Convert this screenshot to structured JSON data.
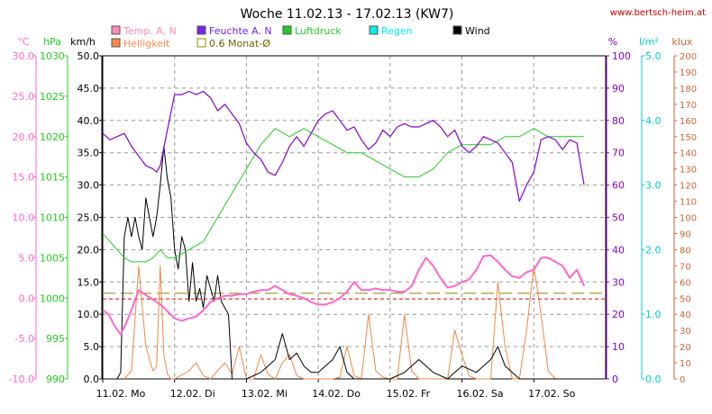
{
  "title": "Woche 11.02.13 - 17.02.13 (KW7)",
  "site": "www.bertsch-heim.at",
  "colors": {
    "temp": "#ff66cc",
    "humidity": "#8800cc",
    "pressure": "#22cc22",
    "rain": "#00cccc",
    "wind": "#000000",
    "brightness": "#ee8844",
    "avg": "#888800",
    "redline": "#dd0000",
    "grid": "#999999"
  },
  "legend": [
    {
      "label": "Temp. A. N",
      "color": "#ff88bb",
      "key": "temp"
    },
    {
      "label": "Feuchte A. N",
      "color": "#7722ee",
      "key": "humidity"
    },
    {
      "label": "Luftdruck",
      "color": "#22cc22",
      "key": "pressure"
    },
    {
      "label": "Regen",
      "color": "#00eeee",
      "key": "rain"
    },
    {
      "label": "Wind",
      "color": "#000000",
      "key": "wind"
    },
    {
      "label": "Helligkeit",
      "color": "#ff8844",
      "key": "brightness"
    },
    {
      "label": "0.6 Monat-Ø",
      "color": "#ffffff",
      "key": "avg"
    }
  ],
  "chart_data": {
    "type": "line",
    "x_labels": [
      "11.02. Mo",
      "12.02. Di",
      "13.02. Mi",
      "14.02. Do",
      "15.02. Fr",
      "16.02. Sa",
      "17.02. So"
    ],
    "axes": {
      "temp": {
        "unit": "°C",
        "min": -10,
        "max": 30,
        "ticks": [
          "30.0",
          "25.0",
          "20.0",
          "15.0",
          "10.0",
          "5.0",
          "0.0",
          "-5.0",
          "-10.0"
        ]
      },
      "pressure": {
        "unit": "hPa",
        "min": 990,
        "max": 1030,
        "ticks": [
          "1030",
          "1025",
          "1020",
          "1015",
          "1010",
          "1005",
          "1000",
          "995",
          "990"
        ]
      },
      "wind": {
        "unit": "km/h",
        "min": 0,
        "max": 50,
        "ticks": [
          "50.0",
          "45.0",
          "40.0",
          "35.0",
          "30.0",
          "25.0",
          "20.0",
          "15.0",
          "10.0",
          "5.0",
          "0.0"
        ]
      },
      "humidity": {
        "unit": "%",
        "min": 0,
        "max": 100,
        "ticks": [
          "100",
          "90",
          "80",
          "70",
          "60",
          "50",
          "40",
          "30",
          "20",
          "10",
          "0"
        ]
      },
      "rain": {
        "unit": "l/m²",
        "min": 0,
        "max": 5,
        "ticks": [
          "5.0",
          "4.0",
          "3.0",
          "2.0",
          "1.0",
          "0.0"
        ]
      },
      "brightness": {
        "unit": "klux",
        "min": 0,
        "max": 200,
        "ticks": [
          "200",
          "190",
          "180",
          "170",
          "160",
          "150",
          "140",
          "130",
          "120",
          "110",
          "100",
          "90",
          "80",
          "70",
          "60",
          "50",
          "40",
          "30",
          "20",
          "10",
          "0"
        ]
      }
    },
    "series": [
      {
        "name": "Temp. A. N",
        "key": "temp",
        "axis": "temp",
        "x": [
          0,
          0.08,
          0.17,
          0.25,
          0.33,
          0.42,
          0.5,
          0.58,
          0.67,
          0.75,
          0.83,
          0.92,
          1.0,
          1.1,
          1.2,
          1.3,
          1.4,
          1.5,
          1.6,
          1.7,
          1.8,
          1.9,
          2.0,
          2.1,
          2.2,
          2.3,
          2.4,
          2.5,
          2.6,
          2.7,
          2.8,
          2.9,
          3.0,
          3.1,
          3.2,
          3.3,
          3.4,
          3.5,
          3.6,
          3.7,
          3.8,
          3.9,
          4.0,
          4.1,
          4.2,
          4.3,
          4.4,
          4.5,
          4.6,
          4.7,
          4.8,
          4.9,
          5.0,
          5.1,
          5.2,
          5.3,
          5.4,
          5.5,
          5.6,
          5.7,
          5.8,
          5.9,
          6.0,
          6.1,
          6.2,
          6.3,
          6.4,
          6.5,
          6.6,
          6.7
        ],
        "y": [
          -1.5,
          -2.0,
          -3.5,
          -4.5,
          -3.0,
          -1.0,
          1.0,
          0.5,
          0.0,
          -0.5,
          -1.0,
          -1.8,
          -2.5,
          -2.8,
          -2.5,
          -2.3,
          -1.5,
          -0.5,
          0.0,
          0.3,
          0.3,
          0.5,
          0.5,
          0.8,
          1.0,
          1.0,
          1.5,
          1.0,
          0.5,
          0.3,
          0.0,
          -0.5,
          -0.8,
          -0.8,
          -0.5,
          0.0,
          0.8,
          2.0,
          1.0,
          1.0,
          1.2,
          1.0,
          1.0,
          0.8,
          0.8,
          1.5,
          3.5,
          5.0,
          4.0,
          2.5,
          1.3,
          1.5,
          2.0,
          2.3,
          3.5,
          5.2,
          5.3,
          4.5,
          3.5,
          2.7,
          2.5,
          3.2,
          3.5,
          5.0,
          5.0,
          4.5,
          4.0,
          2.5,
          3.5,
          1.5
        ]
      },
      {
        "name": "Feuchte A. N",
        "key": "humidity",
        "axis": "humidity",
        "x": [
          0,
          0.1,
          0.2,
          0.3,
          0.4,
          0.5,
          0.6,
          0.7,
          0.75,
          0.8,
          0.9,
          1.0,
          1.1,
          1.2,
          1.3,
          1.4,
          1.5,
          1.6,
          1.7,
          1.8,
          1.9,
          2.0,
          2.1,
          2.2,
          2.3,
          2.4,
          2.5,
          2.6,
          2.7,
          2.8,
          2.9,
          3.0,
          3.1,
          3.2,
          3.3,
          3.4,
          3.5,
          3.6,
          3.7,
          3.8,
          3.9,
          4.0,
          4.1,
          4.2,
          4.3,
          4.4,
          4.5,
          4.6,
          4.7,
          4.8,
          4.9,
          5.0,
          5.1,
          5.2,
          5.3,
          5.4,
          5.5,
          5.6,
          5.7,
          5.8,
          5.9,
          6.0,
          6.1,
          6.2,
          6.3,
          6.4,
          6.5,
          6.6,
          6.7
        ],
        "y": [
          76,
          74,
          75,
          76,
          72,
          69,
          66,
          65,
          64,
          66,
          77,
          88,
          88,
          89,
          88,
          89,
          87,
          83,
          85,
          82,
          79,
          73,
          70,
          68,
          64,
          63,
          67,
          72,
          75,
          72,
          76,
          80,
          82,
          83,
          80,
          77,
          78,
          74,
          71,
          73,
          77,
          75,
          78,
          79,
          78,
          78,
          79,
          80,
          78,
          75,
          77,
          72,
          70,
          72,
          75,
          74,
          73,
          70,
          67,
          55,
          60,
          64,
          74,
          75,
          74,
          71,
          74,
          73,
          60
        ]
      },
      {
        "name": "Luftdruck",
        "key": "pressure",
        "axis": "pressure",
        "x": [
          0,
          0.1,
          0.2,
          0.3,
          0.4,
          0.5,
          0.6,
          0.7,
          0.8,
          0.9,
          1.0,
          1.2,
          1.4,
          1.6,
          1.8,
          2.0,
          2.2,
          2.4,
          2.6,
          2.8,
          3.0,
          3.2,
          3.4,
          3.6,
          3.8,
          4.0,
          4.2,
          4.4,
          4.6,
          4.8,
          5.0,
          5.2,
          5.4,
          5.6,
          5.8,
          6.0,
          6.2,
          6.4,
          6.6,
          6.7
        ],
        "y": [
          1008,
          1007,
          1006,
          1005,
          1004.5,
          1004.5,
          1004.5,
          1005,
          1006,
          1005,
          1005,
          1006,
          1007,
          1010,
          1013,
          1016,
          1019,
          1021,
          1020,
          1021,
          1020,
          1019,
          1018,
          1018,
          1017,
          1016,
          1015,
          1015,
          1016,
          1018,
          1019,
          1019,
          1019,
          1020,
          1020,
          1021,
          1020,
          1020,
          1020,
          1020
        ]
      },
      {
        "name": "Wind",
        "key": "wind",
        "axis": "wind",
        "x": [
          0.2,
          0.25,
          0.3,
          0.35,
          0.4,
          0.45,
          0.5,
          0.55,
          0.6,
          0.65,
          0.7,
          0.75,
          0.8,
          0.85,
          0.9,
          0.95,
          1.0,
          1.05,
          1.1,
          1.15,
          1.2,
          1.25,
          1.3,
          1.35,
          1.4,
          1.45,
          1.5,
          1.55,
          1.6,
          1.65,
          1.7,
          1.75,
          1.8,
          1.85,
          1.9,
          1.95,
          2.0,
          2.2,
          2.4,
          2.5,
          2.6,
          2.7,
          2.8,
          2.9,
          3.0,
          3.1,
          3.2,
          3.3,
          3.4,
          3.5,
          3.6,
          3.8,
          4.0,
          4.2,
          4.4,
          4.5,
          4.6,
          4.8,
          5.0,
          5.2,
          5.4,
          5.5,
          5.6,
          5.8,
          6.0,
          6.2,
          6.4,
          6.6
        ],
        "y": [
          0,
          1,
          22,
          25,
          22,
          25,
          22,
          20,
          28,
          25,
          22,
          25,
          30,
          36,
          31,
          28,
          20,
          17,
          22,
          20,
          12,
          18,
          12,
          14,
          11,
          16,
          14,
          12,
          16,
          12,
          11,
          10,
          0,
          0,
          0,
          0,
          0,
          1,
          3,
          7,
          3,
          4,
          2,
          1,
          1,
          2,
          3,
          5,
          1,
          0,
          0,
          0,
          0,
          1,
          3,
          2,
          1,
          0,
          2,
          1,
          3,
          5,
          2,
          0,
          0,
          0,
          0,
          0
        ]
      },
      {
        "name": "Helligkeit",
        "key": "brightness",
        "axis": "brightness",
        "x": [
          0.3,
          0.4,
          0.5,
          0.6,
          0.7,
          0.75,
          0.8,
          0.85,
          0.9,
          0.95,
          1.0,
          1.2,
          1.3,
          1.4,
          1.5,
          1.6,
          1.7,
          1.8,
          1.9,
          2.0,
          2.1,
          2.2,
          2.3,
          2.4,
          2.5,
          2.6,
          2.7,
          2.8,
          2.9,
          3.0,
          3.1,
          3.2,
          3.3,
          3.4,
          3.5,
          3.6,
          3.7,
          3.8,
          3.9,
          4.0,
          4.1,
          4.2,
          4.3,
          4.4,
          4.5,
          4.6,
          4.7,
          4.8,
          4.9,
          5.0,
          5.1,
          5.2,
          5.3,
          5.4,
          5.5,
          5.6,
          5.7,
          5.8,
          5.9,
          6.0,
          6.1,
          6.2,
          6.3,
          6.4,
          6.5,
          6.6
        ],
        "y": [
          0,
          5,
          70,
          20,
          5,
          8,
          70,
          15,
          3,
          0,
          0,
          5,
          10,
          2,
          0,
          5,
          10,
          3,
          20,
          0,
          0,
          15,
          3,
          0,
          10,
          15,
          2,
          0,
          0,
          0,
          0,
          0,
          1,
          20,
          2,
          0,
          40,
          5,
          1,
          0,
          0,
          40,
          5,
          0,
          0,
          0,
          0,
          0,
          30,
          15,
          2,
          0,
          0,
          0,
          60,
          20,
          0,
          0,
          30,
          70,
          40,
          5,
          0,
          0,
          0,
          0
        ]
      }
    ],
    "references": [
      {
        "name": "0.6 Monat-Ø",
        "axis": "temp",
        "value": 0.6
      },
      {
        "name": "",
        "axis": "temp",
        "value": -0.1
      }
    ]
  }
}
